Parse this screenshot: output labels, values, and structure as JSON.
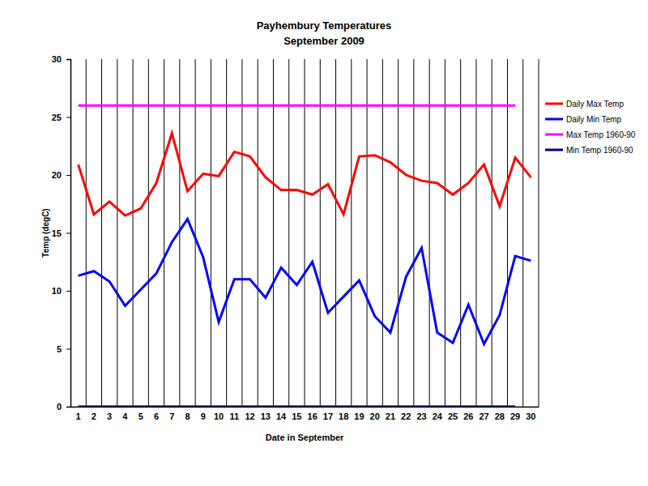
{
  "chart_data": {
    "type": "line",
    "title": "Payhembury Temperatures",
    "subtitle": "September 2009",
    "x_label": "Date in September",
    "y_label": "Temp (degC)",
    "categories": [
      "1",
      "2",
      "3",
      "4",
      "5",
      "6",
      "7",
      "8",
      "9",
      "10",
      "11",
      "12",
      "13",
      "14",
      "15",
      "16",
      "17",
      "18",
      "19",
      "20",
      "21",
      "22",
      "23",
      "24",
      "25",
      "26",
      "27",
      "28",
      "29",
      "30"
    ],
    "series": [
      {
        "name": "Daily Max Temp",
        "color": "#ff0000",
        "values": [
          20.9,
          16.6,
          17.7,
          16.5,
          17.1,
          19.3,
          23.6,
          18.6,
          20.1,
          19.9,
          22.0,
          21.6,
          19.8,
          18.7,
          18.7,
          18.3,
          19.2,
          16.6,
          21.6,
          21.7,
          21.1,
          20.0,
          19.5,
          19.3,
          18.3,
          19.3,
          20.9,
          17.3,
          21.5,
          19.8
        ]
      },
      {
        "name": "Daily Min Temp",
        "color": "#0000ff",
        "values": [
          11.3,
          11.7,
          10.8,
          8.7,
          10.1,
          11.5,
          14.2,
          16.2,
          12.9,
          7.3,
          11.0,
          11.0,
          9.4,
          12.0,
          10.5,
          12.5,
          8.1,
          9.5,
          10.9,
          7.8,
          6.4,
          11.2,
          13.7,
          6.4,
          5.5,
          8.8,
          5.4,
          7.9,
          13.0,
          12.6
        ]
      },
      {
        "name": "Max Temp 1960-90",
        "color": "#ff00ff",
        "values": [
          26,
          26,
          26,
          26,
          26,
          26,
          26,
          26,
          26,
          26,
          26,
          26,
          26,
          26,
          26,
          26,
          26,
          26,
          26,
          26,
          26,
          26,
          26,
          26,
          26,
          26,
          26,
          26,
          26,
          null
        ]
      },
      {
        "name": "Min Temp 1960-90",
        "color": "#000080",
        "values": [
          0,
          0,
          0,
          0,
          0,
          0,
          0,
          0,
          0,
          0,
          0,
          0,
          0,
          0,
          0,
          0,
          0,
          0,
          0,
          0,
          0,
          0,
          0,
          0,
          0,
          0,
          0,
          0,
          0,
          null
        ]
      }
    ],
    "ylim": [
      0,
      30
    ],
    "yticks": [
      0,
      5,
      10,
      15,
      20,
      25,
      30
    ],
    "grid": true,
    "legend": "right"
  }
}
